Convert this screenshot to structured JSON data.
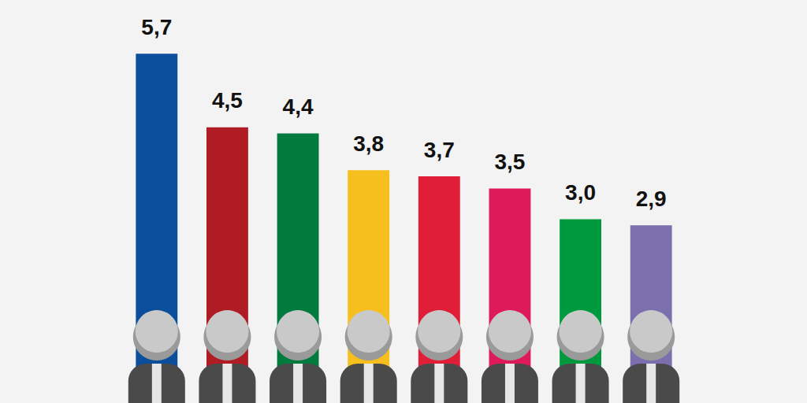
{
  "chart_data": {
    "type": "bar",
    "categories": [
      null,
      null,
      null,
      null,
      null,
      null,
      null,
      null
    ],
    "values": [
      5.7,
      4.5,
      4.4,
      3.8,
      3.7,
      3.5,
      3.0,
      2.9
    ],
    "value_labels": [
      "5,7",
      "4,5",
      "4,4",
      "3,8",
      "3,7",
      "3,5",
      "3,0",
      "2,9"
    ],
    "colors": [
      "#0b4f9c",
      "#b01c24",
      "#007a3d",
      "#f6bf1e",
      "#e01e37",
      "#de1a58",
      "#009a3e",
      "#7b6fae"
    ],
    "ylim": [
      0,
      6
    ],
    "yticks": [
      0,
      6
    ],
    "grid": false,
    "data_labels": true,
    "tick_labels": false
  }
}
